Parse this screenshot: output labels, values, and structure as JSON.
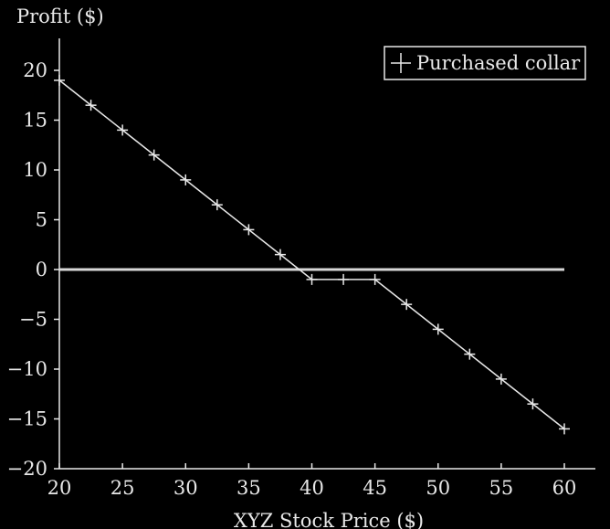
{
  "chart_data": {
    "type": "line",
    "title": "",
    "xlabel": "XYZ Stock Price ($)",
    "ylabel": "Profit ($)",
    "xlim": [
      20,
      60
    ],
    "ylim": [
      -20,
      20
    ],
    "xticks": [
      20,
      25,
      30,
      35,
      40,
      45,
      50,
      55,
      60
    ],
    "yticks": [
      20,
      15,
      10,
      5,
      0,
      -5,
      -10,
      -15,
      -20
    ],
    "xtick_labels": [
      "20",
      "25",
      "30",
      "35",
      "40",
      "45",
      "50",
      "55",
      "60"
    ],
    "ytick_labels": [
      "20",
      "15",
      "10",
      "5",
      "0",
      "−5",
      "−10",
      "−15",
      "−20"
    ],
    "grid": false,
    "zero_line": true,
    "legend_position": "top-right",
    "series": [
      {
        "name": "Purchased collar",
        "marker": "plus",
        "color": "#e8e8e8",
        "x": [
          20,
          22.5,
          25,
          27.5,
          30,
          32.5,
          35,
          37.5,
          40,
          42.5,
          45,
          47.5,
          50,
          52.5,
          55,
          57.5,
          60
        ],
        "y": [
          19,
          16.5,
          14,
          11.5,
          9,
          6.5,
          4,
          1.5,
          -1,
          -1,
          -1,
          -3.5,
          -6,
          -8.5,
          -11,
          -13.5,
          -16
        ]
      }
    ]
  }
}
